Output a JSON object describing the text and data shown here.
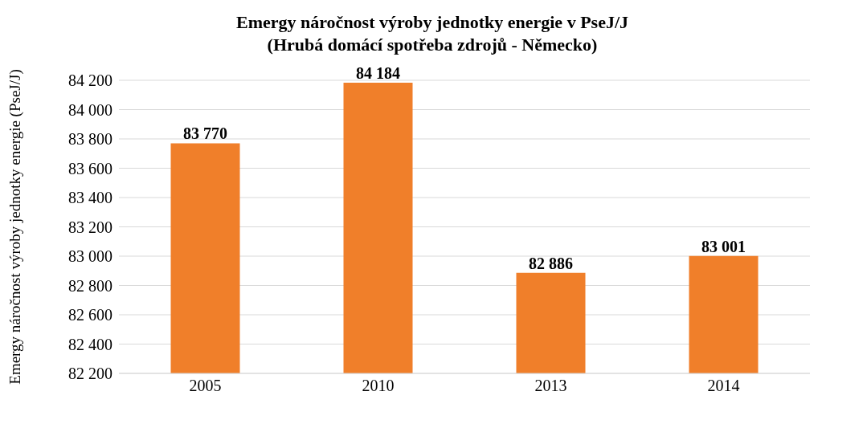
{
  "chart_data": {
    "type": "bar",
    "title": "Emergy náročnost výroby jednotky energie v PseJ/J",
    "subtitle": "(Hrubá domácí spotřeba zdrojů - Německo)",
    "ylabel": "Emergy náročnost výroby jednotky energie (PseJ/J)",
    "categories": [
      "2005",
      "2010",
      "2013",
      "2014"
    ],
    "values": [
      83770,
      84184,
      82886,
      83001
    ],
    "value_labels": [
      "83 770",
      "84 184",
      "82 886",
      "83 001"
    ],
    "color": "#f07f2a",
    "ylim": [
      82200,
      84200
    ],
    "yticks": [
      {
        "value": 82200,
        "label": "82 200"
      },
      {
        "value": 82400,
        "label": "82 400"
      },
      {
        "value": 82600,
        "label": "82 600"
      },
      {
        "value": 82800,
        "label": "82 800"
      },
      {
        "value": 83000,
        "label": "83 000"
      },
      {
        "value": 83200,
        "label": "83 200"
      },
      {
        "value": 83400,
        "label": "83 400"
      },
      {
        "value": 83600,
        "label": "83 600"
      },
      {
        "value": 83800,
        "label": "83 800"
      },
      {
        "value": 84000,
        "label": "84 000"
      },
      {
        "value": 84200,
        "label": "84 200"
      }
    ],
    "grid": "y"
  }
}
